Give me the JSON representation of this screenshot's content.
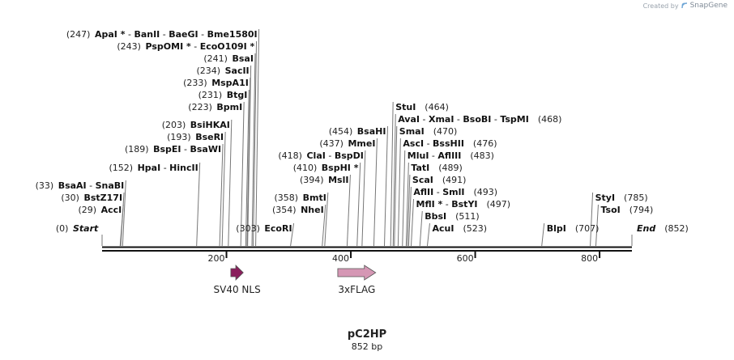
{
  "credit": {
    "prefix": "Created by",
    "brand": "SnapGene"
  },
  "map": {
    "name": "pC2HP",
    "length_label": "852 bp",
    "length_bp": 852
  },
  "axis": {
    "ticks": [
      {
        "bp": 200,
        "label": "200"
      },
      {
        "bp": 400,
        "label": "400"
      },
      {
        "bp": 600,
        "label": "600"
      },
      {
        "bp": 800,
        "label": "800"
      }
    ]
  },
  "ends": [
    {
      "id": "start",
      "bp": 0,
      "label": "Start",
      "pos_label": "(0)",
      "side": "left"
    },
    {
      "id": "end",
      "bp": 852,
      "label": "End",
      "pos_label": "(852)",
      "side": "right"
    }
  ],
  "sites": [
    {
      "id": "apai",
      "bp": 247,
      "pos_label": "(247)",
      "side": "left",
      "names": [
        "ApaI *",
        "BanII",
        "BaeGI",
        "Bme1580I"
      ]
    },
    {
      "id": "pspomi",
      "bp": 243,
      "pos_label": "(243)",
      "side": "left",
      "names": [
        "PspOMI *",
        "EcoO109I *"
      ]
    },
    {
      "id": "bsai",
      "bp": 241,
      "pos_label": "(241)",
      "side": "left",
      "names": [
        "BsaI"
      ]
    },
    {
      "id": "sacii",
      "bp": 234,
      "pos_label": "(234)",
      "side": "left",
      "names": [
        "SacII"
      ]
    },
    {
      "id": "mspa1i",
      "bp": 233,
      "pos_label": "(233)",
      "side": "left",
      "names": [
        "MspA1I"
      ]
    },
    {
      "id": "btgi",
      "bp": 231,
      "pos_label": "(231)",
      "side": "left",
      "names": [
        "BtgI"
      ]
    },
    {
      "id": "bpmi",
      "bp": 223,
      "pos_label": "(223)",
      "side": "left",
      "names": [
        "BpmI"
      ]
    },
    {
      "id": "bsihkai",
      "bp": 203,
      "pos_label": "(203)",
      "side": "left",
      "names": [
        "BsiHKAI"
      ]
    },
    {
      "id": "bseri",
      "bp": 193,
      "pos_label": "(193)",
      "side": "left",
      "names": [
        "BseRI"
      ]
    },
    {
      "id": "bspei",
      "bp": 189,
      "pos_label": "(189)",
      "side": "left",
      "names": [
        "BspEI",
        "BsaWI"
      ]
    },
    {
      "id": "hpai",
      "bp": 152,
      "pos_label": "(152)",
      "side": "left",
      "names": [
        "HpaI",
        "HincII"
      ]
    },
    {
      "id": "bsaai",
      "bp": 33,
      "pos_label": "(33)",
      "side": "left",
      "names": [
        "BsaAI",
        "SnaBI"
      ]
    },
    {
      "id": "bstz17i",
      "bp": 30,
      "pos_label": "(30)",
      "side": "left",
      "names": [
        "BstZ17I"
      ]
    },
    {
      "id": "acci",
      "bp": 29,
      "pos_label": "(29)",
      "side": "left",
      "names": [
        "AccI"
      ]
    },
    {
      "id": "ecori",
      "bp": 303,
      "pos_label": "(303)",
      "side": "left",
      "names": [
        "EcoRI"
      ]
    },
    {
      "id": "clai",
      "bp": 418,
      "pos_label": "(418)",
      "side": "left",
      "names": [
        "ClaI",
        "BspDI"
      ]
    },
    {
      "id": "bsphi",
      "bp": 410,
      "pos_label": "(410)",
      "side": "left",
      "names": [
        "BspHI *"
      ]
    },
    {
      "id": "msli",
      "bp": 394,
      "pos_label": "(394)",
      "side": "left",
      "names": [
        "MslI"
      ]
    },
    {
      "id": "bmti",
      "bp": 358,
      "pos_label": "(358)",
      "side": "left",
      "names": [
        "BmtI"
      ]
    },
    {
      "id": "nhei",
      "bp": 354,
      "pos_label": "(354)",
      "side": "left",
      "names": [
        "NheI"
      ]
    },
    {
      "id": "bsahi",
      "bp": 454,
      "pos_label": "(454)",
      "side": "left",
      "names": [
        "BsaHI"
      ]
    },
    {
      "id": "mmei",
      "bp": 437,
      "pos_label": "(437)",
      "side": "left",
      "names": [
        "MmeI"
      ]
    },
    {
      "id": "stui",
      "bp": 464,
      "pos_label": "(464)",
      "side": "right",
      "names": [
        "StuI"
      ]
    },
    {
      "id": "avai",
      "bp": 468,
      "pos_label": "(468)",
      "side": "right",
      "names": [
        "AvaI",
        "XmaI",
        "BsoBI",
        "TspMI"
      ]
    },
    {
      "id": "smai",
      "bp": 470,
      "pos_label": "(470)",
      "side": "right",
      "names": [
        "SmaI"
      ]
    },
    {
      "id": "asci",
      "bp": 476,
      "pos_label": "(476)",
      "side": "right",
      "names": [
        "AscI",
        "BssHII"
      ]
    },
    {
      "id": "mlui",
      "bp": 483,
      "pos_label": "(483)",
      "side": "right",
      "names": [
        "MluI",
        "AflIII"
      ]
    },
    {
      "id": "tati",
      "bp": 489,
      "pos_label": "(489)",
      "side": "right",
      "names": [
        "TatI"
      ]
    },
    {
      "id": "scai",
      "bp": 491,
      "pos_label": "(491)",
      "side": "right",
      "names": [
        "ScaI"
      ]
    },
    {
      "id": "aflii",
      "bp": 493,
      "pos_label": "(493)",
      "side": "right",
      "names": [
        "AflII",
        "SmlI"
      ]
    },
    {
      "id": "mfli",
      "bp": 497,
      "pos_label": "(497)",
      "side": "right",
      "names": [
        "MflI *",
        "BstYI"
      ]
    },
    {
      "id": "bbsi",
      "bp": 511,
      "pos_label": "(511)",
      "side": "right",
      "names": [
        "BbsI"
      ]
    },
    {
      "id": "acui",
      "bp": 523,
      "pos_label": "(523)",
      "side": "right",
      "names": [
        "AcuI"
      ]
    },
    {
      "id": "blpi",
      "bp": 707,
      "pos_label": "(707)",
      "side": "right",
      "names": [
        "BlpI"
      ]
    },
    {
      "id": "styi",
      "bp": 785,
      "pos_label": "(785)",
      "side": "right",
      "names": [
        "StyI"
      ]
    },
    {
      "id": "tsoi",
      "bp": 794,
      "pos_label": "(794)",
      "side": "right",
      "names": [
        "TsoI"
      ]
    }
  ],
  "features": [
    {
      "id": "sv40-nls",
      "label": "SV40 NLS",
      "start_bp": 207,
      "end_bp": 227,
      "color": "#8a1f5c",
      "direction": "forward"
    },
    {
      "id": "3xflag",
      "label": "3xFLAG",
      "start_bp": 379,
      "end_bp": 440,
      "color": "#d597b4",
      "direction": "forward"
    }
  ]
}
